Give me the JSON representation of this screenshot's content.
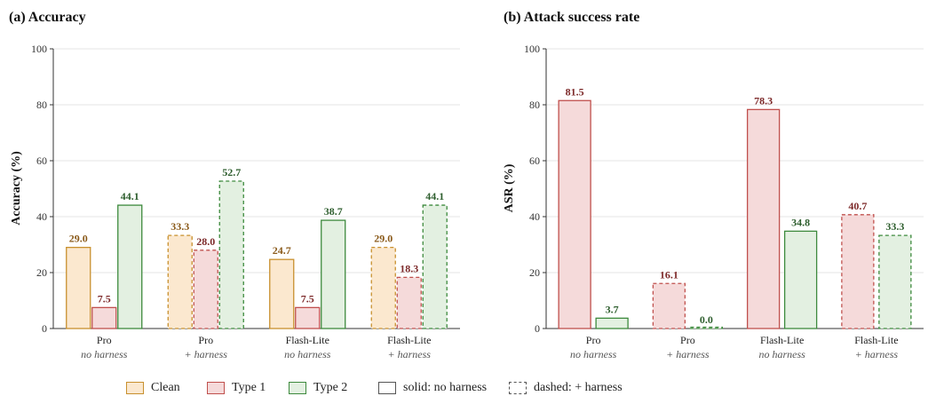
{
  "charts": [
    {
      "title": "(a) Accuracy",
      "ylabel": "Accuracy (%)",
      "ylim": [
        0,
        100
      ],
      "yticks": [
        "0",
        "20",
        "40",
        "60",
        "80",
        "100"
      ],
      "groups": [
        {
          "name": "Pro",
          "sub": "no harness",
          "harness": false,
          "bars": [
            {
              "series": "clean",
              "value": 29.0,
              "label": "29.0"
            },
            {
              "series": "type1",
              "value": 7.5,
              "label": "7.5"
            },
            {
              "series": "type2",
              "value": 44.1,
              "label": "44.1"
            }
          ]
        },
        {
          "name": "Pro",
          "sub": "+ harness",
          "harness": true,
          "bars": [
            {
              "series": "clean",
              "value": 33.3,
              "label": "33.3"
            },
            {
              "series": "type1",
              "value": 28.0,
              "label": "28.0"
            },
            {
              "series": "type2",
              "value": 52.7,
              "label": "52.7"
            }
          ]
        },
        {
          "name": "Flash-Lite",
          "sub": "no harness",
          "harness": false,
          "bars": [
            {
              "series": "clean",
              "value": 24.7,
              "label": "24.7"
            },
            {
              "series": "type1",
              "value": 7.5,
              "label": "7.5"
            },
            {
              "series": "type2",
              "value": 38.7,
              "label": "38.7"
            }
          ]
        },
        {
          "name": "Flash-Lite",
          "sub": "+ harness",
          "harness": true,
          "bars": [
            {
              "series": "clean",
              "value": 29.0,
              "label": "29.0"
            },
            {
              "series": "type1",
              "value": 18.3,
              "label": "18.3"
            },
            {
              "series": "type2",
              "value": 44.1,
              "label": "44.1"
            }
          ]
        }
      ]
    },
    {
      "title": "(b) Attack success rate",
      "ylabel": "ASR (%)",
      "ylim": [
        0,
        100
      ],
      "yticks": [
        "0",
        "20",
        "40",
        "60",
        "80",
        "100"
      ],
      "groups": [
        {
          "name": "Pro",
          "sub": "no harness",
          "harness": false,
          "bars": [
            {
              "series": "type1",
              "value": 81.5,
              "label": "81.5"
            },
            {
              "series": "type2",
              "value": 3.7,
              "label": "3.7"
            }
          ]
        },
        {
          "name": "Pro",
          "sub": "+ harness",
          "harness": true,
          "bars": [
            {
              "series": "type1",
              "value": 16.1,
              "label": "16.1"
            },
            {
              "series": "type2",
              "value": 0.0,
              "label": "0.0"
            }
          ]
        },
        {
          "name": "Flash-Lite",
          "sub": "no harness",
          "harness": false,
          "bars": [
            {
              "series": "type1",
              "value": 78.3,
              "label": "78.3"
            },
            {
              "series": "type2",
              "value": 34.8,
              "label": "34.8"
            }
          ]
        },
        {
          "name": "Flash-Lite",
          "sub": "+ harness",
          "harness": true,
          "bars": [
            {
              "series": "type1",
              "value": 40.7,
              "label": "40.7"
            },
            {
              "series": "type2",
              "value": 33.3,
              "label": "33.3"
            }
          ]
        }
      ]
    }
  ],
  "colors": {
    "clean": {
      "fill": "#fbe8cf",
      "stroke": "#c8902e",
      "text": "#8a5a1a"
    },
    "type1": {
      "fill": "#f5dada",
      "stroke": "#c0504d",
      "text": "#7d2a2a"
    },
    "type2": {
      "fill": "#e3f0e1",
      "stroke": "#3d8a3d",
      "text": "#2e5e2e"
    },
    "axis": "#333333",
    "grid": "#e6e6e6"
  },
  "legend": {
    "clean": "Clean",
    "type1": "Type 1",
    "type2": "Type 2",
    "solid": "solid: no harness",
    "dashed": "dashed: + harness"
  }
}
